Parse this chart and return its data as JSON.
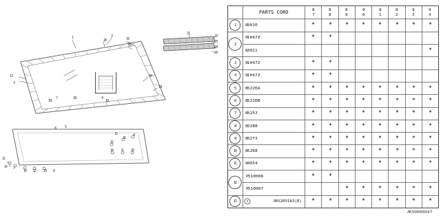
{
  "bg_color": "#ffffff",
  "col_headers": [
    "8\n7",
    "8\n8",
    "8\n9",
    "9\n0",
    "9\n1",
    "9\n2",
    "9\n3",
    "9\n4"
  ],
  "parts_cord_label": "PARTS CORD",
  "rows": [
    {
      "num": "1",
      "parts": [
        "65010"
      ],
      "marks": [
        [
          1,
          1,
          1,
          1,
          1,
          1,
          1,
          1
        ]
      ]
    },
    {
      "num": "2",
      "parts": [
        "91047Z",
        "63011"
      ],
      "marks": [
        [
          1,
          1,
          0,
          0,
          0,
          0,
          0,
          0
        ],
        [
          0,
          0,
          0,
          0,
          0,
          0,
          0,
          1
        ]
      ]
    },
    {
      "num": "3",
      "parts": [
        "91047Z"
      ],
      "marks": [
        [
          1,
          1,
          0,
          0,
          0,
          0,
          0,
          0
        ]
      ]
    },
    {
      "num": "4",
      "parts": [
        "91047Z"
      ],
      "marks": [
        [
          1,
          1,
          0,
          0,
          0,
          0,
          0,
          0
        ]
      ]
    },
    {
      "num": "5",
      "parts": [
        "65220A"
      ],
      "marks": [
        [
          1,
          1,
          1,
          1,
          1,
          1,
          1,
          1
        ]
      ]
    },
    {
      "num": "6",
      "parts": [
        "65220B"
      ],
      "marks": [
        [
          1,
          1,
          1,
          1,
          1,
          1,
          1,
          1
        ]
      ]
    },
    {
      "num": "7",
      "parts": [
        "65253"
      ],
      "marks": [
        [
          1,
          1,
          1,
          1,
          1,
          1,
          1,
          1
        ]
      ]
    },
    {
      "num": "8",
      "parts": [
        "65288"
      ],
      "marks": [
        [
          1,
          1,
          1,
          1,
          1,
          1,
          1,
          1
        ]
      ]
    },
    {
      "num": "9",
      "parts": [
        "65273"
      ],
      "marks": [
        [
          1,
          1,
          1,
          1,
          1,
          1,
          1,
          1
        ]
      ]
    },
    {
      "num": "10",
      "parts": [
        "65268"
      ],
      "marks": [
        [
          1,
          1,
          1,
          1,
          1,
          1,
          1,
          1
        ]
      ]
    },
    {
      "num": "11",
      "parts": [
        "94054"
      ],
      "marks": [
        [
          1,
          1,
          1,
          1,
          1,
          1,
          1,
          1
        ]
      ]
    },
    {
      "num": "12",
      "parts": [
        "P510006",
        "P510007"
      ],
      "marks": [
        [
          1,
          1,
          0,
          0,
          0,
          0,
          0,
          0
        ],
        [
          0,
          0,
          1,
          1,
          1,
          1,
          1,
          1
        ]
      ]
    },
    {
      "num": "13",
      "parts": [
        "045205163(8)"
      ],
      "marks": [
        [
          1,
          1,
          1,
          1,
          1,
          1,
          1,
          1
        ]
      ]
    }
  ],
  "footer": "A650000047",
  "line_color": "#444444"
}
